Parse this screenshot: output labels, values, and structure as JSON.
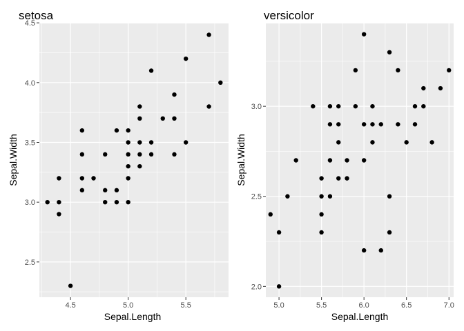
{
  "chart_data": [
    {
      "type": "scatter",
      "title": "setosa",
      "xlabel": "Sepal.Length",
      "ylabel": "Sepal.Width",
      "xlim": [
        4.23,
        5.87
      ],
      "ylim": [
        2.205,
        4.495
      ],
      "xticks": [
        4.5,
        5.0,
        5.5
      ],
      "xtick_labels": [
        "4.5",
        "5.0",
        "5.5"
      ],
      "yticks": [
        2.5,
        3.0,
        3.5,
        4.0,
        4.5
      ],
      "ytick_labels": [
        "2.5",
        "3.0",
        "3.5",
        "4.0",
        "4.5"
      ],
      "grid": true,
      "colors": {
        "panel_bg": "#ebebeb",
        "grid": "#ffffff",
        "point": "#000000"
      },
      "points": [
        {
          "x": 4.3,
          "y": 3.0
        },
        {
          "x": 4.4,
          "y": 3.2
        },
        {
          "x": 4.4,
          "y": 3.0
        },
        {
          "x": 4.4,
          "y": 2.9
        },
        {
          "x": 4.5,
          "y": 2.3
        },
        {
          "x": 4.6,
          "y": 3.6
        },
        {
          "x": 4.6,
          "y": 3.4
        },
        {
          "x": 4.6,
          "y": 3.2
        },
        {
          "x": 4.6,
          "y": 3.1
        },
        {
          "x": 4.7,
          "y": 3.2
        },
        {
          "x": 4.8,
          "y": 3.4
        },
        {
          "x": 4.8,
          "y": 3.1
        },
        {
          "x": 4.8,
          "y": 3.0
        },
        {
          "x": 4.9,
          "y": 3.6
        },
        {
          "x": 4.9,
          "y": 3.1
        },
        {
          "x": 4.9,
          "y": 3.0
        },
        {
          "x": 5.0,
          "y": 3.6
        },
        {
          "x": 5.0,
          "y": 3.5
        },
        {
          "x": 5.0,
          "y": 3.4
        },
        {
          "x": 5.0,
          "y": 3.3
        },
        {
          "x": 5.0,
          "y": 3.2
        },
        {
          "x": 5.0,
          "y": 3.0
        },
        {
          "x": 5.1,
          "y": 3.8
        },
        {
          "x": 5.1,
          "y": 3.7
        },
        {
          "x": 5.1,
          "y": 3.5
        },
        {
          "x": 5.1,
          "y": 3.4
        },
        {
          "x": 5.1,
          "y": 3.3
        },
        {
          "x": 5.2,
          "y": 4.1
        },
        {
          "x": 5.2,
          "y": 3.5
        },
        {
          "x": 5.2,
          "y": 3.4
        },
        {
          "x": 5.3,
          "y": 3.7
        },
        {
          "x": 5.4,
          "y": 3.9
        },
        {
          "x": 5.4,
          "y": 3.7
        },
        {
          "x": 5.4,
          "y": 3.4
        },
        {
          "x": 5.5,
          "y": 4.2
        },
        {
          "x": 5.5,
          "y": 3.5
        },
        {
          "x": 5.7,
          "y": 4.4
        },
        {
          "x": 5.7,
          "y": 3.8
        },
        {
          "x": 5.8,
          "y": 4.0
        }
      ]
    },
    {
      "type": "scatter",
      "title": "versicolor",
      "xlabel": "Sepal.Length",
      "ylabel": "Sepal.Width",
      "xlim": [
        4.845,
        7.055
      ],
      "ylim": [
        1.94,
        3.46
      ],
      "xticks": [
        5.0,
        5.5,
        6.0,
        6.5,
        7.0
      ],
      "xtick_labels": [
        "5.0",
        "5.5",
        "6.0",
        "6.5",
        "7.0"
      ],
      "yticks": [
        2.0,
        2.5,
        3.0
      ],
      "ytick_labels": [
        "2.0",
        "2.5",
        "3.0"
      ],
      "grid": true,
      "colors": {
        "panel_bg": "#ebebeb",
        "grid": "#ffffff",
        "point": "#000000"
      },
      "points": [
        {
          "x": 4.9,
          "y": 2.4
        },
        {
          "x": 5.0,
          "y": 2.3
        },
        {
          "x": 5.0,
          "y": 2.0
        },
        {
          "x": 5.1,
          "y": 2.5
        },
        {
          "x": 5.2,
          "y": 2.7
        },
        {
          "x": 5.4,
          "y": 3.0
        },
        {
          "x": 5.5,
          "y": 2.6
        },
        {
          "x": 5.5,
          "y": 2.5
        },
        {
          "x": 5.5,
          "y": 2.4
        },
        {
          "x": 5.5,
          "y": 2.3
        },
        {
          "x": 5.6,
          "y": 3.0
        },
        {
          "x": 5.6,
          "y": 2.9
        },
        {
          "x": 5.6,
          "y": 2.7
        },
        {
          "x": 5.6,
          "y": 2.5
        },
        {
          "x": 5.7,
          "y": 3.0
        },
        {
          "x": 5.7,
          "y": 2.9
        },
        {
          "x": 5.7,
          "y": 2.8
        },
        {
          "x": 5.7,
          "y": 2.6
        },
        {
          "x": 5.8,
          "y": 2.7
        },
        {
          "x": 5.8,
          "y": 2.6
        },
        {
          "x": 5.9,
          "y": 3.2
        },
        {
          "x": 5.9,
          "y": 3.0
        },
        {
          "x": 6.0,
          "y": 3.4
        },
        {
          "x": 6.0,
          "y": 2.9
        },
        {
          "x": 6.0,
          "y": 2.7
        },
        {
          "x": 6.0,
          "y": 2.2
        },
        {
          "x": 6.1,
          "y": 3.0
        },
        {
          "x": 6.1,
          "y": 2.9
        },
        {
          "x": 6.1,
          "y": 2.8
        },
        {
          "x": 6.2,
          "y": 2.9
        },
        {
          "x": 6.2,
          "y": 2.2
        },
        {
          "x": 6.3,
          "y": 3.3
        },
        {
          "x": 6.3,
          "y": 2.5
        },
        {
          "x": 6.3,
          "y": 2.3
        },
        {
          "x": 6.4,
          "y": 3.2
        },
        {
          "x": 6.4,
          "y": 2.9
        },
        {
          "x": 6.5,
          "y": 2.8
        },
        {
          "x": 6.6,
          "y": 3.0
        },
        {
          "x": 6.6,
          "y": 2.9
        },
        {
          "x": 6.7,
          "y": 3.1
        },
        {
          "x": 6.7,
          "y": 3.0
        },
        {
          "x": 6.8,
          "y": 2.8
        },
        {
          "x": 6.9,
          "y": 3.1
        },
        {
          "x": 7.0,
          "y": 3.2
        }
      ]
    }
  ]
}
